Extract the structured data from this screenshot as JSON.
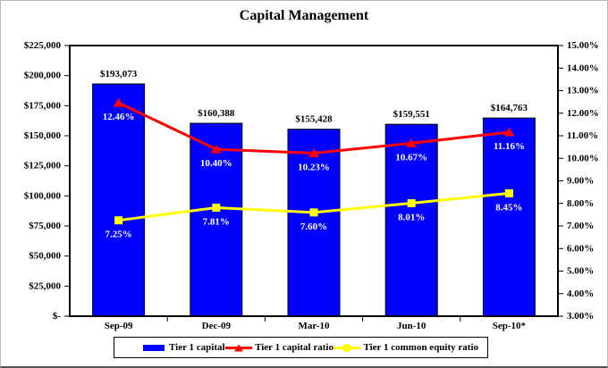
{
  "chart_data": {
    "type": "combo-bar-line",
    "title": "Capital Management",
    "categories": [
      "Sep-09",
      "Dec-09",
      "Mar-10",
      "Jun-10",
      "Sep-10*"
    ],
    "bar_series": {
      "name": "Tier 1 capital",
      "values": [
        193073,
        160388,
        155428,
        159551,
        164763
      ],
      "labels": [
        "$193,073",
        "$160,388",
        "$155,428",
        "$159,551",
        "$164,763"
      ],
      "color": "#0000FF",
      "outline_color": "#000000",
      "axis": "left"
    },
    "line_series": [
      {
        "name": "Tier 1 capital ratio",
        "values": [
          12.46,
          10.4,
          10.23,
          10.67,
          11.16
        ],
        "labels": [
          "12.46%",
          "10.40%",
          "10.23%",
          "10.67%",
          "11.16%"
        ],
        "color": "#FF0000",
        "marker": "triangle",
        "label_color": "#FFFFFF",
        "axis": "right"
      },
      {
        "name": "Tier 1 common equity ratio",
        "values": [
          7.25,
          7.81,
          7.6,
          8.01,
          8.45
        ],
        "labels": [
          "7.25%",
          "7.81%",
          "7.60%",
          "8.01%",
          "8.45%"
        ],
        "color": "#FFFF00",
        "marker": "square",
        "label_color": "#FFFFFF",
        "axis": "right"
      }
    ],
    "left_axis": {
      "ticks": [
        "$225,000",
        "$200,000",
        "$175,000",
        "$150,000",
        "$125,000",
        "$100,000",
        "$75,000",
        "$50,000",
        "$25,000",
        "$-"
      ],
      "min": 0,
      "max": 225000,
      "step": 25000
    },
    "right_axis": {
      "ticks": [
        "15.00%",
        "14.00%",
        "13.00%",
        "12.00%",
        "11.00%",
        "10.00%",
        "9.00%",
        "8.00%",
        "7.00%",
        "6.00%",
        "5.00%",
        "4.00%",
        "3.00%"
      ],
      "min": 3,
      "max": 15,
      "step": 1
    },
    "grid": "off",
    "legend_position": "bottom",
    "plot_background": "#FFFFFF",
    "text_color": "#000000"
  }
}
